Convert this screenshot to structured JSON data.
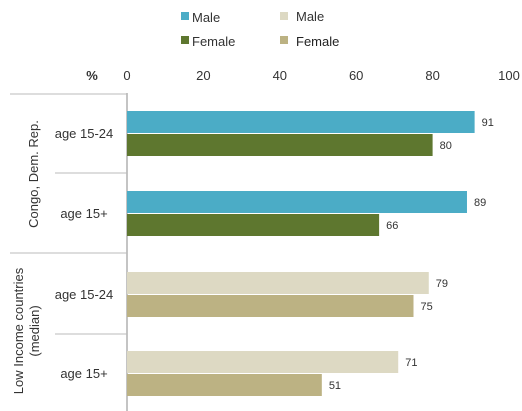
{
  "chart_data": {
    "type": "bar",
    "orientation": "horizontal",
    "axis_label": "%",
    "xlim": [
      0,
      100
    ],
    "ticks": [
      0,
      20,
      40,
      60,
      80,
      100
    ],
    "grid": false,
    "legend_placement": "top",
    "legend": [
      {
        "label": "Male",
        "color": "#4bacc6"
      },
      {
        "label": "Male",
        "color": "#ddd9c3"
      },
      {
        "label": "Female",
        "color": "#5e772f"
      },
      {
        "label": "Female",
        "color": "#bcb283"
      }
    ],
    "groups": [
      {
        "name": "Congo, Dem. Rep.",
        "rows": [
          {
            "label": "age 15-24",
            "male": 91,
            "female": 80
          },
          {
            "label": "age 15+",
            "male": 89,
            "female": 66
          }
        ],
        "male_color": "#4bacc6",
        "female_color": "#5e772f"
      },
      {
        "name": "Low Income countries (median)",
        "name_lines": [
          "Low Income countries",
          "(median)"
        ],
        "rows": [
          {
            "label": "age 15-24",
            "male": 79,
            "female": 75
          },
          {
            "label": "age 15+",
            "male": 71,
            "female": 51
          }
        ],
        "male_color": "#ddd9c3",
        "female_color": "#bcb283"
      }
    ]
  }
}
